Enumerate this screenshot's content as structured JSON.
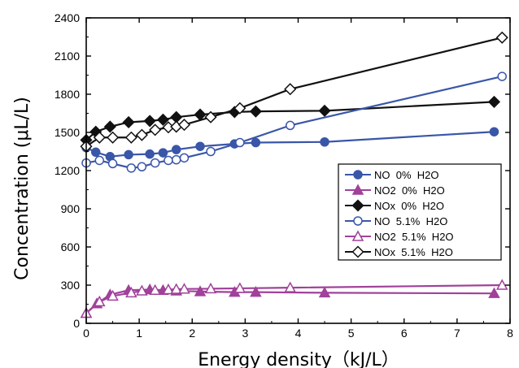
{
  "chart_data": {
    "type": "line",
    "xlabel": "Energy density（kJ/L）",
    "ylabel": "Concentration (μL/L)",
    "xlim": [
      0,
      8
    ],
    "ylim": [
      0,
      2400
    ],
    "xticks": [
      "0",
      "1",
      "2",
      "3",
      "4",
      "5",
      "6",
      "7",
      "8"
    ],
    "yticks": [
      "0",
      "300",
      "600",
      "900",
      "1200",
      "1500",
      "1800",
      "2100",
      "2400"
    ],
    "legend_position": "center-right",
    "series": [
      {
        "name": "NO  0%  H2O",
        "color": "#3a56a8",
        "marker": "circle",
        "filled": true,
        "x": [
          0.0,
          0.18,
          0.45,
          0.8,
          1.2,
          1.45,
          1.7,
          2.15,
          2.8,
          3.2,
          4.5,
          7.7
        ],
        "y": [
          1380,
          1345,
          1310,
          1325,
          1330,
          1340,
          1365,
          1390,
          1410,
          1420,
          1425,
          1505
        ]
      },
      {
        "name": "NO2  0%  H2O",
        "color": "#a0419a",
        "marker": "triangle",
        "filled": true,
        "x": [
          0.0,
          0.2,
          0.45,
          0.8,
          1.2,
          1.45,
          1.7,
          2.15,
          2.8,
          3.2,
          4.5,
          7.7
        ],
        "y": [
          80,
          155,
          225,
          260,
          265,
          260,
          255,
          250,
          245,
          245,
          240,
          235
        ]
      },
      {
        "name": "NOx  0%  H2O",
        "color": "#111111",
        "marker": "diamond",
        "filled": true,
        "x": [
          0.0,
          0.18,
          0.45,
          0.8,
          1.2,
          1.45,
          1.7,
          2.15,
          2.8,
          3.2,
          4.5,
          7.7
        ],
        "y": [
          1440,
          1505,
          1545,
          1580,
          1590,
          1600,
          1620,
          1640,
          1660,
          1665,
          1670,
          1740
        ]
      },
      {
        "name": "NO  5.1%  H2O",
        "color": "#3a56a8",
        "marker": "circle",
        "filled": false,
        "x": [
          0.0,
          0.25,
          0.5,
          0.85,
          1.05,
          1.3,
          1.55,
          1.7,
          1.85,
          2.35,
          2.9,
          3.85,
          7.85
        ],
        "y": [
          1260,
          1280,
          1255,
          1220,
          1230,
          1260,
          1280,
          1285,
          1300,
          1350,
          1420,
          1555,
          1940
        ]
      },
      {
        "name": "NO2  5.1%  H2O",
        "color": "#a0419a",
        "marker": "triangle",
        "filled": false,
        "x": [
          0.0,
          0.25,
          0.5,
          0.85,
          1.05,
          1.3,
          1.55,
          1.7,
          1.85,
          2.35,
          2.9,
          3.85,
          7.85
        ],
        "y": [
          80,
          170,
          215,
          240,
          255,
          260,
          265,
          268,
          270,
          272,
          275,
          280,
          300
        ]
      },
      {
        "name": "NOx  5.1%  H2O",
        "color": "#111111",
        "marker": "diamond",
        "filled": false,
        "x": [
          0.0,
          0.25,
          0.5,
          0.85,
          1.05,
          1.3,
          1.55,
          1.7,
          1.85,
          2.35,
          2.9,
          3.85,
          7.85
        ],
        "y": [
          1390,
          1460,
          1460,
          1460,
          1480,
          1520,
          1540,
          1545,
          1560,
          1620,
          1690,
          1840,
          2245
        ]
      }
    ]
  }
}
